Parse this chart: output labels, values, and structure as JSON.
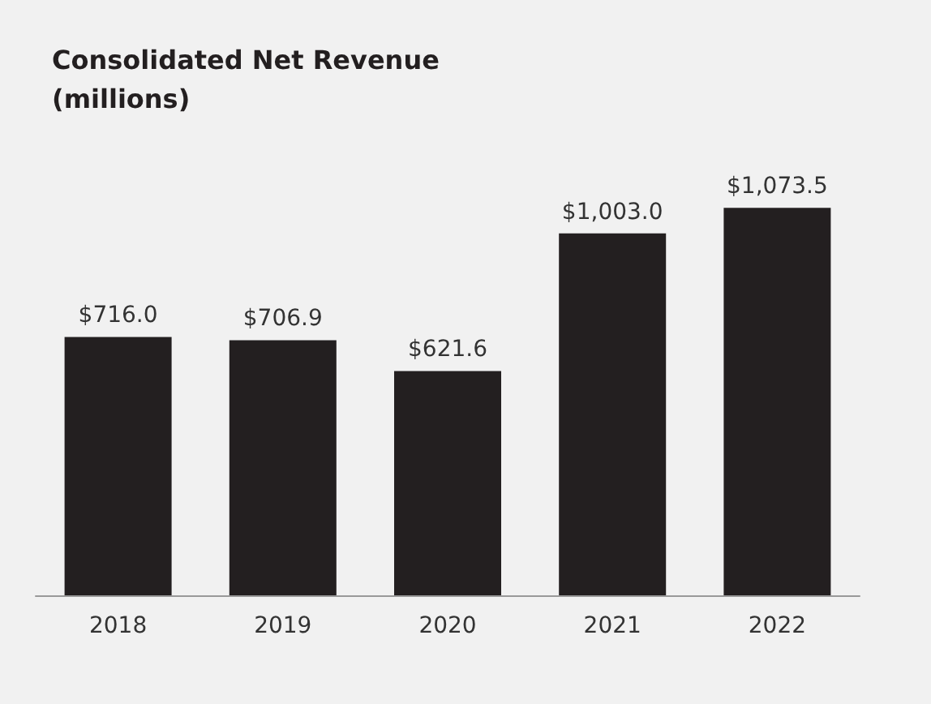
{
  "chart_data": {
    "type": "bar",
    "title": "Consolidated Net Revenue (millions)",
    "categories": [
      "2018",
      "2019",
      "2020",
      "2021",
      "2022"
    ],
    "values": [
      716.0,
      706.9,
      621.6,
      1003.0,
      1073.5
    ],
    "value_labels": [
      "$716.0",
      "$706.9",
      "$621.6",
      "$1,003.0",
      "$1,073.5"
    ],
    "color": "#231f20",
    "grid": false
  }
}
